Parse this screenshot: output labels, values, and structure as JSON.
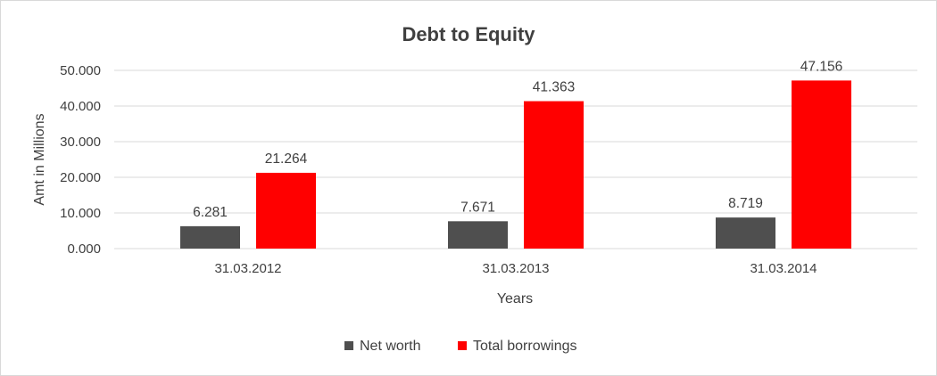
{
  "chart_data": {
    "type": "bar",
    "title": "Debt to Equity",
    "xlabel": "Years",
    "ylabel": "Amt in Millions",
    "categories": [
      "31.03.2012",
      "31.03.2013",
      "31.03.2014"
    ],
    "series": [
      {
        "name": "Net worth",
        "values": [
          6.281,
          7.671,
          8.719
        ],
        "labels": [
          "6.281",
          "7.671",
          "8.719"
        ],
        "color": "#4f4f4f"
      },
      {
        "name": "Total borrowings",
        "values": [
          21.264,
          41.363,
          47.156
        ],
        "labels": [
          "21.264",
          "41.363",
          "47.156"
        ],
        "color": "#ff0000"
      }
    ],
    "ylim": [
      0,
      50
    ],
    "yticks": [
      0,
      10,
      20,
      30,
      40,
      50
    ],
    "ytick_labels": [
      "0.000",
      "10.000",
      "20.000",
      "30.000",
      "40.000",
      "50.000"
    ],
    "grid": true,
    "legend": "bottom"
  }
}
